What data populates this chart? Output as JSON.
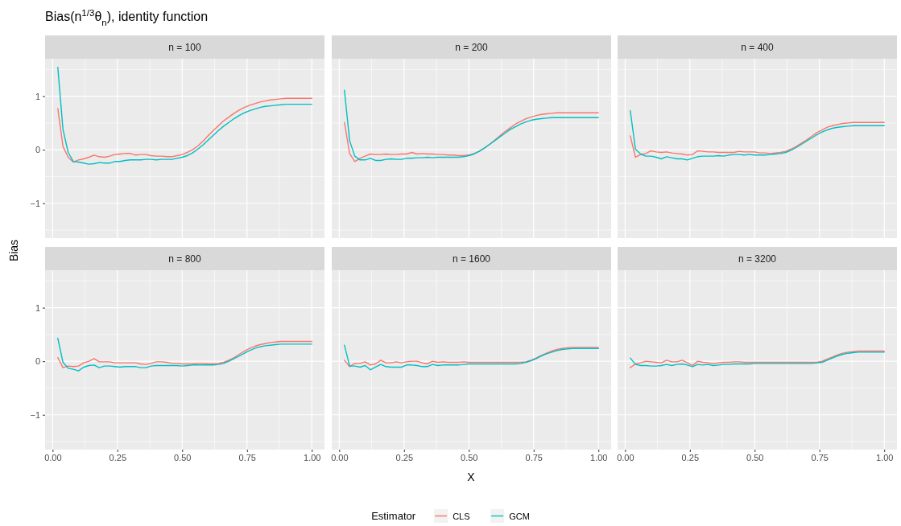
{
  "chart_data": [
    {
      "type": "line",
      "title": "n = 100",
      "subtitle": "Bias(n$^{1/3}$θ$_{n}$), identity function",
      "ylabel": "Bias",
      "legend_title": "Estimator",
      "legend": "bottom",
      "xlim": [
        -0.029,
        1.049
      ],
      "ylim": [
        -1.65,
        1.7
      ],
      "xticks": [
        0,
        0.25,
        0.5,
        0.75,
        1
      ],
      "yticks": [
        {
          "value": -1,
          "label": "−1"
        },
        0,
        1
      ],
      "grid": true,
      "tick_labels": "y",
      "x": [
        0.02,
        0.04,
        0.06,
        0.08,
        0.1,
        0.12,
        0.14,
        0.16,
        0.18,
        0.2,
        0.22,
        0.24,
        0.26,
        0.28,
        0.3,
        0.32,
        0.34,
        0.36,
        0.38,
        0.4,
        0.42,
        0.44,
        0.46,
        0.48,
        0.5,
        0.52,
        0.54,
        0.56,
        0.58,
        0.6,
        0.62,
        0.64,
        0.66,
        0.68,
        0.7,
        0.72,
        0.74,
        0.76,
        0.78,
        0.8,
        0.82,
        0.84,
        0.86,
        0.88,
        0.9,
        0.92,
        0.94,
        0.96,
        0.98,
        1.0
      ],
      "series": [
        {
          "name": "CLS",
          "color": "#f8766d",
          "values": [
            0.77,
            0.06,
            -0.14,
            -0.23,
            -0.19,
            -0.17,
            -0.14,
            -0.1,
            -0.13,
            -0.14,
            -0.12,
            -0.09,
            -0.08,
            -0.07,
            -0.07,
            -0.1,
            -0.09,
            -0.09,
            -0.11,
            -0.12,
            -0.12,
            -0.13,
            -0.13,
            -0.11,
            -0.09,
            -0.05,
            0.0,
            0.07,
            0.16,
            0.26,
            0.36,
            0.45,
            0.54,
            0.61,
            0.68,
            0.74,
            0.79,
            0.83,
            0.86,
            0.89,
            0.91,
            0.93,
            0.94,
            0.95,
            0.96,
            0.96,
            0.96,
            0.96,
            0.96,
            0.96
          ]
        },
        {
          "name": "GCM",
          "color": "#00bfc4",
          "values": [
            1.54,
            0.38,
            -0.05,
            -0.22,
            -0.23,
            -0.25,
            -0.27,
            -0.26,
            -0.24,
            -0.25,
            -0.25,
            -0.22,
            -0.22,
            -0.2,
            -0.19,
            -0.19,
            -0.19,
            -0.18,
            -0.18,
            -0.19,
            -0.18,
            -0.18,
            -0.18,
            -0.16,
            -0.14,
            -0.11,
            -0.06,
            0.01,
            0.09,
            0.18,
            0.27,
            0.36,
            0.44,
            0.51,
            0.58,
            0.64,
            0.69,
            0.73,
            0.76,
            0.79,
            0.81,
            0.82,
            0.83,
            0.84,
            0.85,
            0.85,
            0.85,
            0.85,
            0.85,
            0.85
          ]
        }
      ]
    },
    {
      "type": "line",
      "title": "n = 200",
      "xlim": [
        -0.029,
        1.049
      ],
      "ylim": [
        -1.65,
        1.7
      ],
      "xticks": [
        0,
        0.25,
        0.5,
        0.75,
        1
      ],
      "yticks": [
        -1,
        0,
        1
      ],
      "grid": true,
      "tick_labels": false,
      "x": [
        0.02,
        0.04,
        0.06,
        0.08,
        0.1,
        0.12,
        0.14,
        0.16,
        0.18,
        0.2,
        0.22,
        0.24,
        0.26,
        0.28,
        0.3,
        0.32,
        0.34,
        0.36,
        0.38,
        0.4,
        0.42,
        0.44,
        0.46,
        0.48,
        0.5,
        0.52,
        0.54,
        0.56,
        0.58,
        0.6,
        0.62,
        0.64,
        0.66,
        0.68,
        0.7,
        0.72,
        0.74,
        0.76,
        0.78,
        0.8,
        0.82,
        0.84,
        0.86,
        0.88,
        0.9,
        0.92,
        0.94,
        0.96,
        0.98,
        1.0
      ],
      "series": [
        {
          "color": "#f8766d",
          "values": [
            0.51,
            -0.07,
            -0.22,
            -0.16,
            -0.12,
            -0.08,
            -0.09,
            -0.09,
            -0.08,
            -0.09,
            -0.09,
            -0.08,
            -0.08,
            -0.05,
            -0.08,
            -0.07,
            -0.08,
            -0.08,
            -0.09,
            -0.09,
            -0.1,
            -0.1,
            -0.11,
            -0.11,
            -0.1,
            -0.07,
            -0.03,
            0.03,
            0.1,
            0.18,
            0.26,
            0.34,
            0.41,
            0.48,
            0.53,
            0.58,
            0.61,
            0.64,
            0.66,
            0.67,
            0.68,
            0.69,
            0.69,
            0.69,
            0.69,
            0.69,
            0.69,
            0.69,
            0.69,
            0.69
          ]
        },
        {
          "color": "#00bfc4",
          "values": [
            1.11,
            0.17,
            -0.12,
            -0.19,
            -0.19,
            -0.16,
            -0.2,
            -0.2,
            -0.18,
            -0.17,
            -0.18,
            -0.18,
            -0.16,
            -0.16,
            -0.15,
            -0.15,
            -0.14,
            -0.15,
            -0.14,
            -0.14,
            -0.14,
            -0.14,
            -0.14,
            -0.13,
            -0.11,
            -0.08,
            -0.03,
            0.03,
            0.1,
            0.17,
            0.24,
            0.31,
            0.38,
            0.43,
            0.48,
            0.52,
            0.55,
            0.57,
            0.58,
            0.59,
            0.6,
            0.6,
            0.6,
            0.6,
            0.6,
            0.6,
            0.6,
            0.6,
            0.6,
            0.6
          ]
        }
      ]
    },
    {
      "type": "line",
      "title": "n = 400",
      "xlim": [
        -0.029,
        1.049
      ],
      "ylim": [
        -1.65,
        1.7
      ],
      "xticks": [
        0,
        0.25,
        0.5,
        0.75,
        1
      ],
      "yticks": [
        -1,
        0,
        1
      ],
      "grid": true,
      "tick_labels": false,
      "x": [
        0.02,
        0.04,
        0.06,
        0.08,
        0.1,
        0.12,
        0.14,
        0.16,
        0.18,
        0.2,
        0.22,
        0.24,
        0.26,
        0.28,
        0.3,
        0.32,
        0.34,
        0.36,
        0.38,
        0.4,
        0.42,
        0.44,
        0.46,
        0.48,
        0.5,
        0.52,
        0.54,
        0.56,
        0.58,
        0.6,
        0.62,
        0.64,
        0.66,
        0.68,
        0.7,
        0.72,
        0.74,
        0.76,
        0.78,
        0.8,
        0.82,
        0.84,
        0.86,
        0.88,
        0.9,
        0.92,
        0.94,
        0.96,
        0.98,
        1.0
      ],
      "series": [
        {
          "color": "#f8766d",
          "values": [
            0.26,
            -0.14,
            -0.09,
            -0.07,
            -0.02,
            -0.04,
            -0.05,
            -0.04,
            -0.06,
            -0.07,
            -0.08,
            -0.1,
            -0.09,
            -0.02,
            -0.03,
            -0.04,
            -0.04,
            -0.05,
            -0.05,
            -0.05,
            -0.05,
            -0.03,
            -0.04,
            -0.04,
            -0.04,
            -0.06,
            -0.06,
            -0.07,
            -0.06,
            -0.05,
            -0.03,
            0.01,
            0.06,
            0.12,
            0.18,
            0.25,
            0.32,
            0.37,
            0.42,
            0.45,
            0.47,
            0.49,
            0.5,
            0.51,
            0.51,
            0.51,
            0.51,
            0.51,
            0.51,
            0.51
          ]
        },
        {
          "color": "#00bfc4",
          "values": [
            0.73,
            0.01,
            -0.08,
            -0.12,
            -0.12,
            -0.14,
            -0.17,
            -0.13,
            -0.15,
            -0.17,
            -0.17,
            -0.19,
            -0.16,
            -0.13,
            -0.12,
            -0.12,
            -0.12,
            -0.11,
            -0.12,
            -0.1,
            -0.09,
            -0.09,
            -0.1,
            -0.09,
            -0.1,
            -0.1,
            -0.1,
            -0.09,
            -0.08,
            -0.07,
            -0.05,
            -0.01,
            0.04,
            0.1,
            0.16,
            0.22,
            0.28,
            0.33,
            0.37,
            0.4,
            0.42,
            0.43,
            0.44,
            0.45,
            0.45,
            0.45,
            0.45,
            0.45,
            0.45,
            0.45
          ]
        }
      ]
    },
    {
      "type": "line",
      "title": "n = 800",
      "xlim": [
        -0.029,
        1.049
      ],
      "ylim": [
        -1.65,
        1.7
      ],
      "xticks": [
        {
          "value": 0,
          "label": "0.00"
        },
        {
          "value": 0.25,
          "label": "0.25"
        },
        {
          "value": 0.5,
          "label": "0.50"
        },
        {
          "value": 0.75,
          "label": "0.75"
        },
        {
          "value": 1,
          "label": "1.00"
        }
      ],
      "yticks": [
        {
          "value": -1,
          "label": "−1"
        },
        0,
        1
      ],
      "grid": true,
      "x": [
        0.02,
        0.04,
        0.06,
        0.08,
        0.1,
        0.12,
        0.14,
        0.16,
        0.18,
        0.2,
        0.22,
        0.24,
        0.26,
        0.28,
        0.3,
        0.32,
        0.34,
        0.36,
        0.38,
        0.4,
        0.42,
        0.44,
        0.46,
        0.48,
        0.5,
        0.52,
        0.54,
        0.56,
        0.58,
        0.6,
        0.62,
        0.64,
        0.66,
        0.68,
        0.7,
        0.72,
        0.74,
        0.76,
        0.78,
        0.8,
        0.82,
        0.84,
        0.86,
        0.88,
        0.9,
        0.92,
        0.94,
        0.96,
        0.98,
        1.0
      ],
      "series": [
        {
          "color": "#f8766d",
          "values": [
            0.07,
            -0.12,
            -0.09,
            -0.1,
            -0.09,
            -0.03,
            0.0,
            0.05,
            -0.01,
            -0.01,
            -0.01,
            -0.03,
            -0.03,
            -0.03,
            -0.03,
            -0.03,
            -0.05,
            -0.06,
            -0.04,
            -0.01,
            -0.01,
            -0.02,
            -0.04,
            -0.04,
            -0.05,
            -0.05,
            -0.05,
            -0.04,
            -0.04,
            -0.05,
            -0.05,
            -0.04,
            -0.02,
            0.02,
            0.07,
            0.13,
            0.19,
            0.24,
            0.28,
            0.31,
            0.33,
            0.35,
            0.36,
            0.37,
            0.37,
            0.37,
            0.37,
            0.37,
            0.37,
            0.37
          ]
        },
        {
          "color": "#00bfc4",
          "values": [
            0.43,
            -0.02,
            -0.13,
            -0.15,
            -0.18,
            -0.11,
            -0.08,
            -0.07,
            -0.12,
            -0.09,
            -0.09,
            -0.1,
            -0.11,
            -0.1,
            -0.1,
            -0.1,
            -0.12,
            -0.12,
            -0.09,
            -0.08,
            -0.08,
            -0.08,
            -0.08,
            -0.08,
            -0.09,
            -0.08,
            -0.07,
            -0.07,
            -0.07,
            -0.07,
            -0.07,
            -0.06,
            -0.04,
            0.0,
            0.05,
            0.1,
            0.15,
            0.2,
            0.24,
            0.27,
            0.29,
            0.3,
            0.31,
            0.32,
            0.32,
            0.32,
            0.32,
            0.32,
            0.32,
            0.32
          ]
        }
      ]
    },
    {
      "type": "line",
      "title": "n = 1600",
      "xlabel": "X",
      "xlim": [
        -0.029,
        1.049
      ],
      "ylim": [
        -1.65,
        1.7
      ],
      "xticks": [
        {
          "value": 0,
          "label": "0.00"
        },
        {
          "value": 0.25,
          "label": "0.25"
        },
        {
          "value": 0.5,
          "label": "0.50"
        },
        {
          "value": 0.75,
          "label": "0.75"
        },
        {
          "value": 1,
          "label": "1.00"
        }
      ],
      "yticks": [
        -1,
        0,
        1
      ],
      "grid": true,
      "tick_labels": "x",
      "x": [
        0.02,
        0.04,
        0.06,
        0.08,
        0.1,
        0.12,
        0.14,
        0.16,
        0.18,
        0.2,
        0.22,
        0.24,
        0.26,
        0.28,
        0.3,
        0.32,
        0.34,
        0.36,
        0.38,
        0.4,
        0.42,
        0.44,
        0.46,
        0.48,
        0.5,
        0.52,
        0.54,
        0.56,
        0.58,
        0.6,
        0.62,
        0.64,
        0.66,
        0.68,
        0.7,
        0.72,
        0.74,
        0.76,
        0.78,
        0.8,
        0.82,
        0.84,
        0.86,
        0.88,
        0.9,
        0.92,
        0.94,
        0.96,
        0.98,
        1.0
      ],
      "series": [
        {
          "color": "#f8766d",
          "values": [
            0.02,
            -0.1,
            -0.04,
            -0.04,
            -0.01,
            -0.07,
            -0.05,
            0.02,
            -0.03,
            -0.03,
            -0.01,
            -0.03,
            -0.01,
            0.0,
            0.0,
            -0.03,
            -0.05,
            0.0,
            -0.02,
            -0.01,
            -0.02,
            -0.02,
            -0.02,
            -0.01,
            -0.02,
            -0.02,
            -0.02,
            -0.02,
            -0.02,
            -0.02,
            -0.02,
            -0.02,
            -0.02,
            -0.02,
            -0.02,
            -0.01,
            0.02,
            0.06,
            0.11,
            0.15,
            0.19,
            0.22,
            0.24,
            0.25,
            0.26,
            0.26,
            0.26,
            0.26,
            0.26,
            0.26
          ]
        },
        {
          "color": "#00bfc4",
          "values": [
            0.3,
            -0.09,
            -0.09,
            -0.11,
            -0.08,
            -0.16,
            -0.11,
            -0.06,
            -0.1,
            -0.11,
            -0.11,
            -0.11,
            -0.07,
            -0.07,
            -0.08,
            -0.1,
            -0.1,
            -0.06,
            -0.08,
            -0.07,
            -0.07,
            -0.07,
            -0.07,
            -0.06,
            -0.05,
            -0.05,
            -0.05,
            -0.05,
            -0.05,
            -0.05,
            -0.05,
            -0.05,
            -0.05,
            -0.05,
            -0.04,
            -0.02,
            0.01,
            0.05,
            0.1,
            0.14,
            0.17,
            0.2,
            0.22,
            0.23,
            0.24,
            0.24,
            0.24,
            0.24,
            0.24,
            0.24
          ]
        }
      ]
    },
    {
      "type": "line",
      "title": "n = 3200",
      "xlim": [
        -0.029,
        1.049
      ],
      "ylim": [
        -1.65,
        1.7
      ],
      "xticks": [
        {
          "value": 0,
          "label": "0.00"
        },
        {
          "value": 0.25,
          "label": "0.25"
        },
        {
          "value": 0.5,
          "label": "0.50"
        },
        {
          "value": 0.75,
          "label": "0.75"
        },
        {
          "value": 1,
          "label": "1.00"
        }
      ],
      "yticks": [
        -1,
        0,
        1
      ],
      "grid": true,
      "tick_labels": "x",
      "x": [
        0.02,
        0.04,
        0.06,
        0.08,
        0.1,
        0.12,
        0.14,
        0.16,
        0.18,
        0.2,
        0.22,
        0.24,
        0.26,
        0.28,
        0.3,
        0.32,
        0.34,
        0.36,
        0.38,
        0.4,
        0.42,
        0.44,
        0.46,
        0.48,
        0.5,
        0.52,
        0.54,
        0.56,
        0.58,
        0.6,
        0.62,
        0.64,
        0.66,
        0.68,
        0.7,
        0.72,
        0.74,
        0.76,
        0.78,
        0.8,
        0.82,
        0.84,
        0.86,
        0.88,
        0.9,
        0.92,
        0.94,
        0.96,
        0.98,
        1.0
      ],
      "series": [
        {
          "color": "#f8766d",
          "values": [
            -0.12,
            -0.05,
            -0.03,
            0.0,
            -0.01,
            -0.02,
            -0.03,
            0.02,
            -0.01,
            -0.01,
            0.02,
            -0.03,
            -0.08,
            0.0,
            -0.02,
            -0.03,
            -0.04,
            -0.03,
            -0.02,
            -0.02,
            -0.01,
            -0.01,
            -0.02,
            -0.02,
            -0.02,
            -0.02,
            -0.02,
            -0.02,
            -0.02,
            -0.02,
            -0.02,
            -0.02,
            -0.02,
            -0.02,
            -0.02,
            -0.02,
            -0.02,
            0.0,
            0.04,
            0.08,
            0.12,
            0.15,
            0.17,
            0.18,
            0.19,
            0.19,
            0.19,
            0.19,
            0.19,
            0.19
          ]
        },
        {
          "color": "#00bfc4",
          "values": [
            0.06,
            -0.06,
            -0.08,
            -0.08,
            -0.09,
            -0.09,
            -0.08,
            -0.06,
            -0.08,
            -0.06,
            -0.05,
            -0.07,
            -0.1,
            -0.06,
            -0.07,
            -0.06,
            -0.08,
            -0.07,
            -0.06,
            -0.06,
            -0.05,
            -0.05,
            -0.05,
            -0.05,
            -0.04,
            -0.04,
            -0.04,
            -0.04,
            -0.04,
            -0.04,
            -0.04,
            -0.04,
            -0.04,
            -0.04,
            -0.04,
            -0.04,
            -0.03,
            -0.02,
            0.02,
            0.06,
            0.1,
            0.13,
            0.15,
            0.16,
            0.17,
            0.17,
            0.17,
            0.17,
            0.17,
            0.17
          ]
        }
      ]
    }
  ]
}
